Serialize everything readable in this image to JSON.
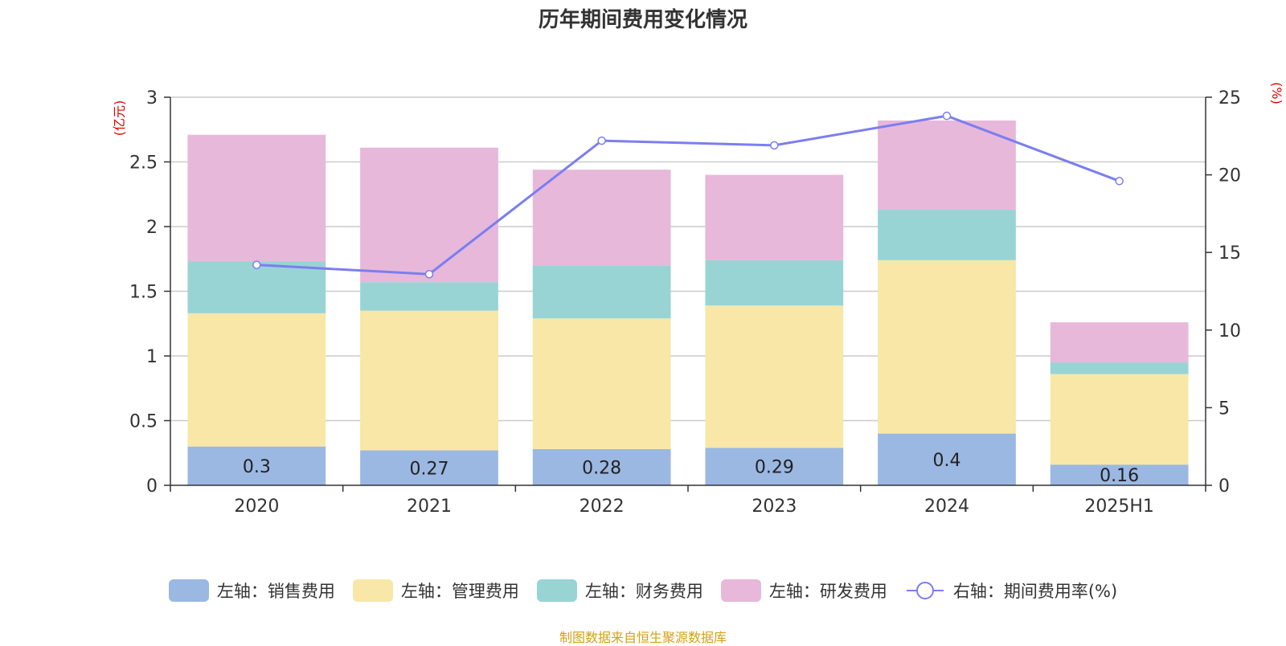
{
  "chart_data": {
    "type": "bar",
    "title": "历年期间费用变化情况",
    "categories": [
      "2020",
      "2021",
      "2022",
      "2023",
      "2024",
      "2025H1"
    ],
    "left_axis": {
      "unit_label": "(亿元)",
      "ylim": [
        0,
        3
      ],
      "ticks": [
        "0",
        "0.5",
        "1",
        "1.5",
        "2",
        "2.5",
        "3"
      ]
    },
    "right_axis": {
      "unit_label": "(%)",
      "ylim": [
        0,
        25
      ],
      "ticks": [
        "0",
        "5",
        "10",
        "15",
        "20",
        "25"
      ]
    },
    "stacked": true,
    "grid": true,
    "legend_position": "bottom",
    "series": [
      {
        "name": "左轴：销售费用",
        "type": "bar",
        "axis": "left",
        "color": "#9bb8e2",
        "values": [
          0.3,
          0.27,
          0.28,
          0.29,
          0.4,
          0.16
        ],
        "data_labels": [
          "0.3",
          "0.27",
          "0.28",
          "0.29",
          "0.4",
          "0.16"
        ]
      },
      {
        "name": "左轴：管理费用",
        "type": "bar",
        "axis": "left",
        "color": "#f8e7a7",
        "values": [
          1.03,
          1.08,
          1.01,
          1.1,
          1.34,
          0.7
        ]
      },
      {
        "name": "左轴：财务费用",
        "type": "bar",
        "axis": "left",
        "color": "#98d4d4",
        "values": [
          0.4,
          0.22,
          0.41,
          0.35,
          0.39,
          0.09
        ]
      },
      {
        "name": "左轴：研发费用",
        "type": "bar",
        "axis": "left",
        "color": "#e7b8da",
        "values": [
          0.98,
          1.04,
          0.74,
          0.66,
          0.69,
          0.31
        ]
      },
      {
        "name": "右轴：期间费用率(%)",
        "type": "line",
        "axis": "right",
        "color": "#7b7ef0",
        "values": [
          14.2,
          13.6,
          22.2,
          21.9,
          23.8,
          19.6
        ]
      }
    ]
  },
  "source_note": "制图数据来自恒生聚源数据库"
}
